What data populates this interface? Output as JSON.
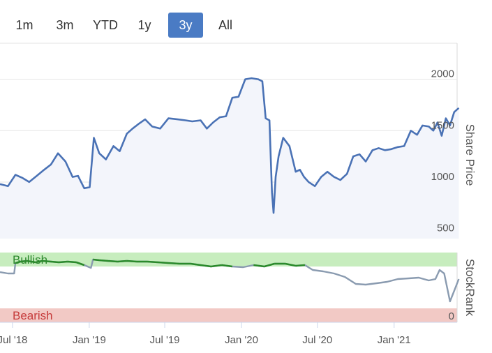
{
  "range_selector": {
    "buttons": [
      "1m",
      "3m",
      "YTD",
      "1y",
      "3y",
      "All"
    ],
    "selected": "3y",
    "active_color": "#4a7bc4"
  },
  "chart_data": [
    {
      "type": "area",
      "ylabel": "Share Price",
      "ylim": [
        450,
        2350
      ],
      "yticks": [
        500,
        1000,
        1500,
        2000
      ],
      "grid": true,
      "line_color": "#4a72b5",
      "fill_color": "#f3f5fb",
      "x_start": "2018-06",
      "x_end": "2021-06",
      "x": [
        "2018-06-01",
        "2018-06-20",
        "2018-07-08",
        "2018-07-25",
        "2018-08-10",
        "2018-08-28",
        "2018-09-15",
        "2018-10-01",
        "2018-10-18",
        "2018-11-05",
        "2018-11-22",
        "2018-12-05",
        "2018-12-20",
        "2019-01-02",
        "2019-01-12",
        "2019-01-25",
        "2019-02-10",
        "2019-02-28",
        "2019-03-15",
        "2019-04-01",
        "2019-04-15",
        "2019-05-01",
        "2019-05-15",
        "2019-06-01",
        "2019-06-20",
        "2019-07-10",
        "2019-08-01",
        "2019-08-20",
        "2019-09-05",
        "2019-09-25",
        "2019-10-10",
        "2019-10-25",
        "2019-11-10",
        "2019-11-25",
        "2019-12-10",
        "2019-12-25",
        "2020-01-10",
        "2020-01-25",
        "2020-02-10",
        "2020-02-20",
        "2020-02-28",
        "2020-03-08",
        "2020-03-14",
        "2020-03-18",
        "2020-03-23",
        "2020-03-30",
        "2020-04-10",
        "2020-04-25",
        "2020-05-10",
        "2020-05-20",
        "2020-05-30",
        "2020-06-10",
        "2020-06-25",
        "2020-07-10",
        "2020-07-25",
        "2020-08-10",
        "2020-08-25",
        "2020-09-10",
        "2020-09-25",
        "2020-10-10",
        "2020-10-25",
        "2020-11-10",
        "2020-11-25",
        "2020-12-10",
        "2020-12-25",
        "2021-01-10",
        "2021-01-25",
        "2021-02-10",
        "2021-02-25",
        "2021-03-10",
        "2021-03-25",
        "2021-04-05",
        "2021-04-15",
        "2021-04-25",
        "2021-05-05",
        "2021-05-15",
        "2021-05-25",
        "2021-06-05"
      ],
      "y": [
        980,
        960,
        1070,
        1040,
        1000,
        1060,
        1120,
        1170,
        1280,
        1200,
        1050,
        1060,
        940,
        950,
        1430,
        1280,
        1220,
        1350,
        1300,
        1470,
        1520,
        1570,
        1610,
        1540,
        1520,
        1620,
        1610,
        1600,
        1590,
        1600,
        1520,
        1580,
        1630,
        1640,
        1820,
        1830,
        2000,
        2010,
        2000,
        1980,
        1620,
        1600,
        900,
        700,
        1050,
        1250,
        1430,
        1350,
        1100,
        1120,
        1050,
        1000,
        960,
        1050,
        1100,
        1050,
        1020,
        1080,
        1250,
        1270,
        1200,
        1310,
        1330,
        1310,
        1320,
        1340,
        1350,
        1500,
        1460,
        1550,
        1540,
        1500,
        1580,
        1450,
        1620,
        1550,
        1680,
        1720
      ]
    },
    {
      "type": "line",
      "ylabel": "StockRank",
      "ylim": [
        0,
        100
      ],
      "yticks": [
        0
      ],
      "line_color": "#8a9bb0",
      "bands": [
        {
          "label": "Bullish",
          "from": 80,
          "to": 100,
          "color": "#c7edbe",
          "text_color": "#2e8a2e"
        },
        {
          "label": "Bearish",
          "from": 0,
          "to": 20,
          "color": "#f2c9c5",
          "text_color": "#c63b3b"
        }
      ],
      "bullish_segment_color": "#2a8a2a",
      "x": [
        "2018-06-01",
        "2018-06-20",
        "2018-07-05",
        "2018-07-08",
        "2018-07-20",
        "2018-08-05",
        "2018-08-25",
        "2018-09-10",
        "2018-10-01",
        "2018-10-20",
        "2018-11-10",
        "2018-12-01",
        "2018-12-20",
        "2019-01-05",
        "2019-01-10",
        "2019-01-25",
        "2019-02-15",
        "2019-03-10",
        "2019-04-01",
        "2019-04-25",
        "2019-05-20",
        "2019-06-15",
        "2019-07-10",
        "2019-08-05",
        "2019-09-01",
        "2019-09-25",
        "2019-10-20",
        "2019-11-15",
        "2019-12-10",
        "2020-01-05",
        "2020-01-30",
        "2020-02-25",
        "2020-03-20",
        "2020-04-15",
        "2020-05-10",
        "2020-06-01",
        "2020-06-20",
        "2020-07-15",
        "2020-08-10",
        "2020-09-05",
        "2020-10-01",
        "2020-10-25",
        "2020-11-20",
        "2020-12-15",
        "2021-01-10",
        "2021-02-05",
        "2021-03-01",
        "2021-03-25",
        "2021-04-10",
        "2021-04-20",
        "2021-05-01",
        "2021-05-15",
        "2021-05-25",
        "2021-06-05"
      ],
      "y": [
        72,
        70,
        70,
        85,
        87,
        88,
        86,
        88,
        87,
        86,
        87,
        86,
        82,
        78,
        90,
        89,
        88,
        87,
        88,
        87,
        87,
        86,
        85,
        84,
        84,
        82,
        80,
        82,
        80,
        79,
        82,
        80,
        84,
        84,
        81,
        82,
        75,
        73,
        70,
        65,
        55,
        54,
        56,
        58,
        62,
        63,
        64,
        60,
        62,
        75,
        70,
        30,
        45,
        62
      ]
    }
  ],
  "x_axis_ticks": [
    {
      "label": "Jul '18",
      "date": "2018-07-01"
    },
    {
      "label": "Jan '19",
      "date": "2019-01-01"
    },
    {
      "label": "Jul '19",
      "date": "2019-07-01"
    },
    {
      "label": "Jan '20",
      "date": "2020-01-01"
    },
    {
      "label": "Jul '20",
      "date": "2020-07-01"
    },
    {
      "label": "Jan '21",
      "date": "2021-01-01"
    }
  ]
}
